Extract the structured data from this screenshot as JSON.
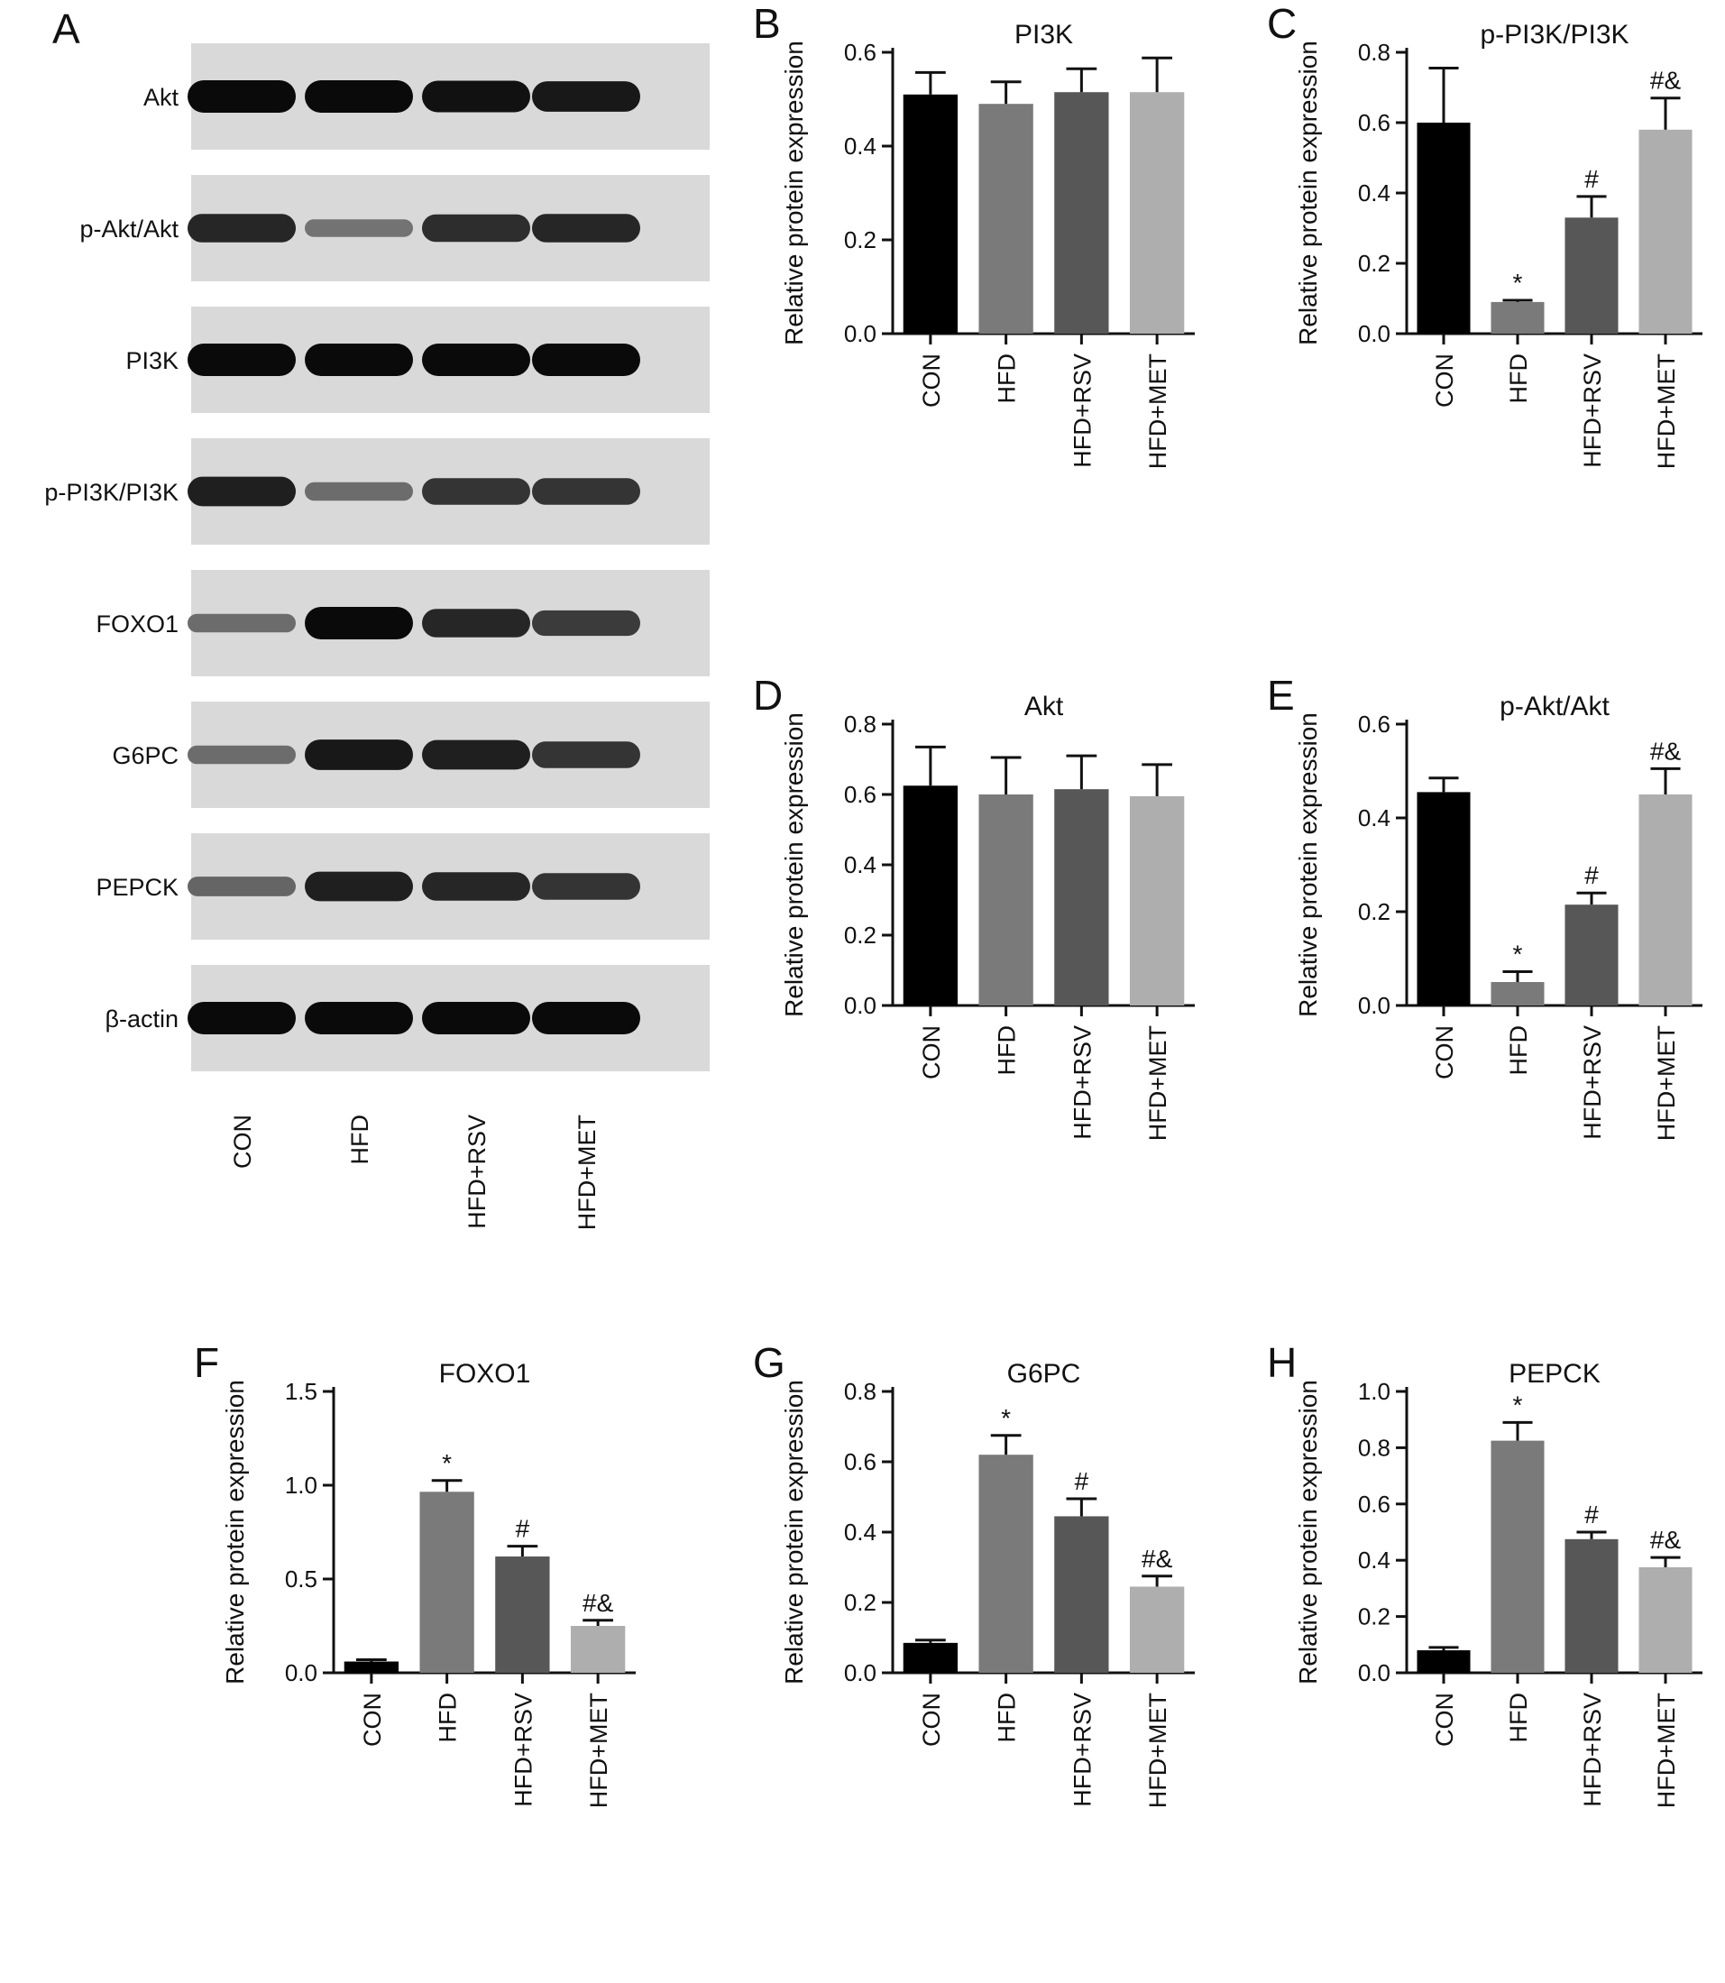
{
  "blot": {
    "letter": "A",
    "rows": [
      {
        "label": "Akt",
        "intensity": [
          1,
          1,
          0.95,
          0.9
        ]
      },
      {
        "label": "p-Akt/Akt",
        "intensity": [
          0.8,
          0.25,
          0.75,
          0.8
        ]
      },
      {
        "label": "PI3K",
        "intensity": [
          1,
          1,
          1,
          1
        ]
      },
      {
        "label": "p-PI3K/PI3K",
        "intensity": [
          0.85,
          0.3,
          0.7,
          0.7
        ]
      },
      {
        "label": "FOXO1",
        "intensity": [
          0.3,
          1,
          0.8,
          0.65
        ]
      },
      {
        "label": "G6PC",
        "intensity": [
          0.3,
          0.9,
          0.85,
          0.7
        ]
      },
      {
        "label": "PEPCK",
        "intensity": [
          0.35,
          0.85,
          0.8,
          0.7
        ]
      },
      {
        "label": "β-actin",
        "intensity": [
          1,
          1,
          1,
          1
        ]
      }
    ],
    "lanes": [
      "CON",
      "HFD",
      "HFD+RSV",
      "HFD+MET"
    ]
  },
  "colors": {
    "bars": [
      "#000000",
      "#7a7a7a",
      "#575757",
      "#aeaeae"
    ]
  },
  "chart_data": [
    {
      "id": "B",
      "letter": "B",
      "type": "bar",
      "title": "PI3K",
      "ylabel": "Relative protein expression",
      "categories": [
        "CON",
        "HFD",
        "HFD+RSV",
        "HFD+MET"
      ],
      "values": [
        0.51,
        0.49,
        0.515,
        0.515
      ],
      "errors": [
        0.047,
        0.047,
        0.05,
        0.073
      ],
      "annotations": [
        "",
        "",
        "",
        ""
      ],
      "ylim": [
        0,
        0.6
      ],
      "yticks": [
        {
          "v": 0,
          "t": "0.0"
        },
        {
          "v": 0.2,
          "t": "0.2"
        },
        {
          "v": 0.4,
          "t": "0.4"
        },
        {
          "v": 0.6,
          "t": "0.6"
        }
      ]
    },
    {
      "id": "C",
      "letter": "C",
      "type": "bar",
      "title": "p-PI3K/PI3K",
      "ylabel": "Relative protein expression",
      "categories": [
        "CON",
        "HFD",
        "HFD+RSV",
        "HFD+MET"
      ],
      "values": [
        0.6,
        0.09,
        0.33,
        0.58
      ],
      "errors": [
        0.155,
        0.005,
        0.06,
        0.09
      ],
      "annotations": [
        "",
        "*",
        "#",
        "#&"
      ],
      "ylim": [
        0,
        0.8
      ],
      "yticks": [
        {
          "v": 0,
          "t": "0.0"
        },
        {
          "v": 0.2,
          "t": "0.2"
        },
        {
          "v": 0.4,
          "t": "0.4"
        },
        {
          "v": 0.6,
          "t": "0.6"
        },
        {
          "v": 0.8,
          "t": "0.8"
        }
      ]
    },
    {
      "id": "D",
      "letter": "D",
      "type": "bar",
      "title": "Akt",
      "ylabel": "Relative protein expression",
      "categories": [
        "CON",
        "HFD",
        "HFD+RSV",
        "HFD+MET"
      ],
      "values": [
        0.625,
        0.6,
        0.615,
        0.595
      ],
      "errors": [
        0.11,
        0.105,
        0.095,
        0.09
      ],
      "annotations": [
        "",
        "",
        "",
        ""
      ],
      "ylim": [
        0,
        0.8
      ],
      "yticks": [
        {
          "v": 0,
          "t": "0.0"
        },
        {
          "v": 0.2,
          "t": "0.2"
        },
        {
          "v": 0.4,
          "t": "0.4"
        },
        {
          "v": 0.6,
          "t": "0.6"
        },
        {
          "v": 0.8,
          "t": "0.8"
        }
      ]
    },
    {
      "id": "E",
      "letter": "E",
      "type": "bar",
      "title": "p-Akt/Akt",
      "ylabel": "Relative protein expression",
      "categories": [
        "CON",
        "HFD",
        "HFD+RSV",
        "HFD+MET"
      ],
      "values": [
        0.455,
        0.05,
        0.215,
        0.45
      ],
      "errors": [
        0.03,
        0.022,
        0.025,
        0.055
      ],
      "annotations": [
        "",
        "*",
        "#",
        "#&"
      ],
      "ylim": [
        0,
        0.6
      ],
      "yticks": [
        {
          "v": 0,
          "t": "0.0"
        },
        {
          "v": 0.2,
          "t": "0.2"
        },
        {
          "v": 0.4,
          "t": "0.4"
        },
        {
          "v": 0.6,
          "t": "0.6"
        }
      ]
    },
    {
      "id": "F",
      "letter": "F",
      "type": "bar",
      "title": "FOXO1",
      "ylabel": "Relative protein expression",
      "categories": [
        "CON",
        "HFD",
        "HFD+RSV",
        "HFD+MET"
      ],
      "values": [
        0.06,
        0.965,
        0.62,
        0.25
      ],
      "errors": [
        0.01,
        0.06,
        0.055,
        0.03
      ],
      "annotations": [
        "",
        "*",
        "#",
        "#&"
      ],
      "ylim": [
        0,
        1.5
      ],
      "yticks": [
        {
          "v": 0,
          "t": "0.0"
        },
        {
          "v": 0.5,
          "t": "0.5"
        },
        {
          "v": 1.0,
          "t": "1.0"
        },
        {
          "v": 1.5,
          "t": "1.5"
        }
      ]
    },
    {
      "id": "G",
      "letter": "G",
      "type": "bar",
      "title": "G6PC",
      "ylabel": "Relative protein expression",
      "categories": [
        "CON",
        "HFD",
        "HFD+RSV",
        "HFD+MET"
      ],
      "values": [
        0.085,
        0.62,
        0.445,
        0.245
      ],
      "errors": [
        0.008,
        0.055,
        0.05,
        0.03
      ],
      "annotations": [
        "",
        "*",
        "#",
        "#&"
      ],
      "ylim": [
        0,
        0.8
      ],
      "yticks": [
        {
          "v": 0,
          "t": "0.0"
        },
        {
          "v": 0.2,
          "t": "0.2"
        },
        {
          "v": 0.4,
          "t": "0.4"
        },
        {
          "v": 0.6,
          "t": "0.6"
        },
        {
          "v": 0.8,
          "t": "0.8"
        }
      ]
    },
    {
      "id": "H",
      "letter": "H",
      "type": "bar",
      "title": "PEPCK",
      "ylabel": "Relative protein expression",
      "categories": [
        "CON",
        "HFD",
        "HFD+RSV",
        "HFD+MET"
      ],
      "values": [
        0.08,
        0.825,
        0.475,
        0.375
      ],
      "errors": [
        0.01,
        0.065,
        0.025,
        0.035
      ],
      "annotations": [
        "",
        "*",
        "#",
        "#&"
      ],
      "ylim": [
        0,
        1.0
      ],
      "yticks": [
        {
          "v": 0,
          "t": "0.0"
        },
        {
          "v": 0.2,
          "t": "0.2"
        },
        {
          "v": 0.4,
          "t": "0.4"
        },
        {
          "v": 0.6,
          "t": "0.6"
        },
        {
          "v": 0.8,
          "t": "0.8"
        },
        {
          "v": 1.0,
          "t": "1.0"
        }
      ]
    }
  ]
}
